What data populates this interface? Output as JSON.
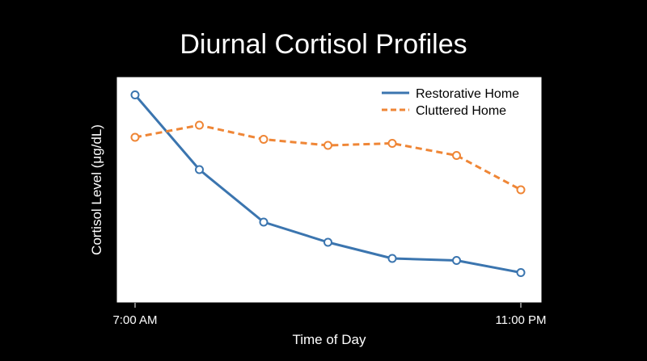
{
  "chart_data": {
    "type": "line",
    "title": "Diurnal Cortisol Profiles",
    "xlabel": "Time of Day",
    "ylabel": "Cortisol Level (μg/dL)",
    "x_tick_labels": [
      "7:00 AM",
      "11:00 PM"
    ],
    "legend_position": "top-right",
    "grid": false,
    "ylim": [
      0,
      100
    ],
    "series": [
      {
        "name": "Restorative Home",
        "color": "#3b75af",
        "line_style": "solid",
        "values": [
          95,
          58,
          32,
          22,
          14,
          13,
          7
        ]
      },
      {
        "name": "Cluttered Home",
        "color": "#ef8636",
        "line_style": "dashed",
        "values": [
          74,
          80,
          73,
          70,
          71,
          65,
          48
        ]
      }
    ]
  }
}
